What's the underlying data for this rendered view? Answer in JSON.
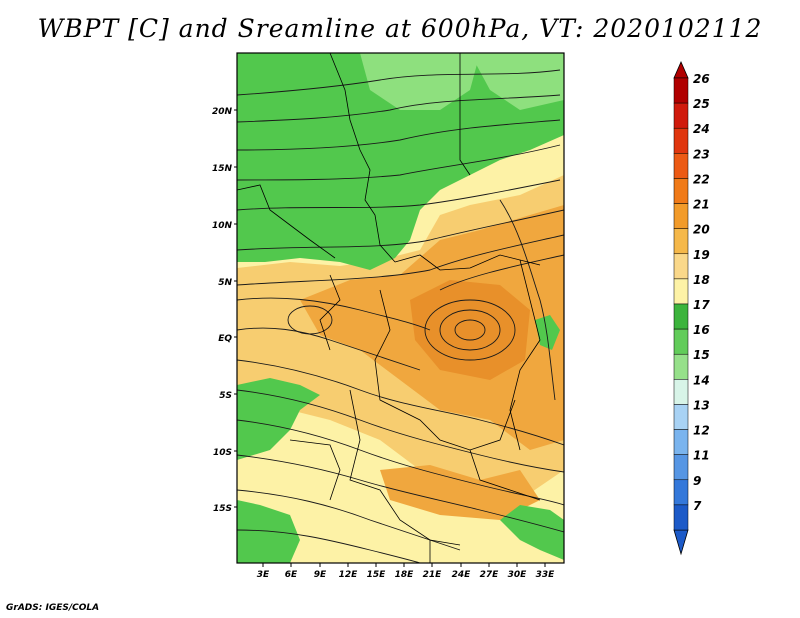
{
  "title": "WBPT [C] and Sreamline at 600hPa, VT: 2020102112",
  "footer": "GrADS: IGES/COLA",
  "map": {
    "lat_labels": [
      "20N",
      "15N",
      "10N",
      "5N",
      "EQ",
      "5S",
      "10S",
      "15S"
    ],
    "lon_labels": [
      "3E",
      "6E",
      "9E",
      "12E",
      "15E",
      "18E",
      "21E",
      "24E",
      "27E",
      "30E",
      "33E"
    ],
    "colors": {
      "green": "#52c84d",
      "light_green": "#8ee07e",
      "yellow": "#fdf2a6",
      "light_orange": "#f7cd70",
      "orange": "#f0a73e",
      "dark_orange": "#e8902a"
    }
  },
  "colorbar": {
    "labels": [
      "26",
      "25",
      "24",
      "23",
      "22",
      "21",
      "20",
      "19",
      "18",
      "17",
      "16",
      "15",
      "14",
      "13",
      "12",
      "11",
      "9",
      "7"
    ],
    "colors": [
      "#b00000",
      "#d01a0c",
      "#e0360e",
      "#ec5a14",
      "#f07a18",
      "#f29b2a",
      "#f5b84a",
      "#fad88a",
      "#fdf2a6",
      "#3cb43c",
      "#62cc5a",
      "#96e08a",
      "#d8f4e8",
      "#a8d2f4",
      "#7ab4ee",
      "#5696e4",
      "#3478da",
      "#1c5ac8"
    ]
  }
}
